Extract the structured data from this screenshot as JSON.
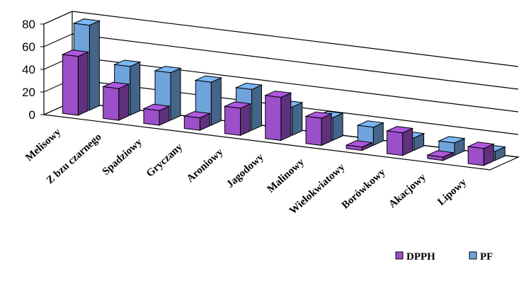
{
  "chart_data": {
    "type": "bar",
    "style": "3d-clustered-column",
    "categories": [
      "Melisowy",
      "Z bzu czarnego",
      "Spadziowy",
      "Gryczany",
      "Aroniowy",
      "Jagodowy",
      "Malinowy",
      "Wielokwiatowy",
      "Borówkowy",
      "Akacjowy",
      "Lipowy"
    ],
    "series": [
      {
        "name": "DPPH",
        "color": "#9B4FC8",
        "values": [
          52,
          28,
          13,
          11,
          24,
          38,
          24,
          3,
          20,
          3,
          15
        ]
      },
      {
        "name": "PF",
        "color": "#6FA3DC",
        "values": [
          75,
          43,
          42,
          38,
          36,
          25,
          20,
          16,
          11,
          11,
          8
        ]
      }
    ],
    "ylim": [
      0,
      80
    ],
    "yticks": [
      "0",
      "20",
      "40",
      "60",
      "80"
    ],
    "xlabel": "",
    "ylabel": "",
    "grid": true,
    "legend_position": "bottom-right"
  }
}
